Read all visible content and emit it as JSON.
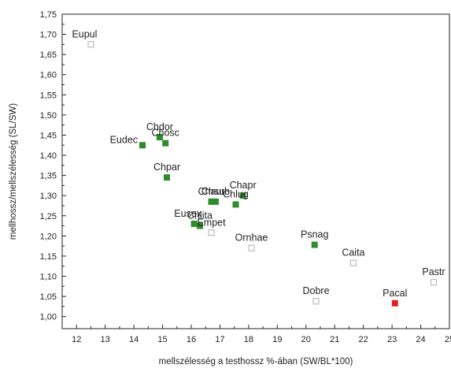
{
  "chart_data": {
    "type": "scatter",
    "xlabel": "mellszélesség a testhossz %-ában (SW/BL*100)",
    "ylabel": "mellhossz/mellszélesség (SL/SW)",
    "xlim": [
      11.5,
      25
    ],
    "ylim": [
      0.97,
      1.75
    ],
    "x_ticks": [
      12,
      13,
      14,
      15,
      16,
      17,
      18,
      19,
      20,
      21,
      22,
      23,
      24,
      25
    ],
    "x_tick_labels": [
      "12",
      "13",
      "14",
      "15",
      "16",
      "17",
      "18",
      "19",
      "20",
      "21",
      "22",
      "23",
      "24",
      "25"
    ],
    "y_ticks": [
      1.0,
      1.05,
      1.1,
      1.15,
      1.2,
      1.25,
      1.3,
      1.35,
      1.4,
      1.45,
      1.5,
      1.55,
      1.6,
      1.65,
      1.7,
      1.75
    ],
    "y_tick_labels": [
      "1,00",
      "1,05",
      "1,10",
      "1,15",
      "1,20",
      "1,25",
      "1,30",
      "1,35",
      "1,40",
      "1,45",
      "1,50",
      "1,55",
      "1,60",
      "1,65",
      "1,70",
      "1,75"
    ],
    "grid": false,
    "marker_styles": {
      "green": {
        "fill": "#2e8b2e",
        "stroke": "#2e8b2e"
      },
      "red": {
        "fill": "#e02020",
        "stroke": "#e02020"
      },
      "open": {
        "fill": "#ffffff",
        "stroke": "#b0b0b0"
      }
    },
    "points": [
      {
        "label": "Eupul",
        "x": 12.5,
        "y": 1.675,
        "style": "open",
        "label_pos": "above-left"
      },
      {
        "label": "Chdor",
        "x": 14.9,
        "y": 1.445,
        "style": "green",
        "label_pos": "above"
      },
      {
        "label": "Chosc",
        "x": 15.1,
        "y": 1.43,
        "style": "green",
        "label_pos": "above"
      },
      {
        "label": "Eudec",
        "x": 14.3,
        "y": 1.425,
        "style": "green",
        "label_pos": "left"
      },
      {
        "label": "Chpar",
        "x": 15.15,
        "y": 1.345,
        "style": "green",
        "label_pos": "above"
      },
      {
        "label": "Chapr",
        "x": 17.8,
        "y": 1.3,
        "style": "green",
        "label_pos": "above"
      },
      {
        "label": "Chaur",
        "x": 16.7,
        "y": 1.285,
        "style": "green",
        "label_pos": "above"
      },
      {
        "label": "Chsub",
        "x": 16.85,
        "y": 1.285,
        "style": "green",
        "label_pos": "above"
      },
      {
        "label": "Chlug",
        "x": 17.55,
        "y": 1.278,
        "style": "green",
        "label_pos": "above"
      },
      {
        "label": "Eusex",
        "x": 16.1,
        "y": 1.23,
        "style": "green",
        "label_pos": "above-left"
      },
      {
        "label": "Chlita",
        "x": 16.3,
        "y": 1.225,
        "style": "green",
        "label_pos": "above"
      },
      {
        "label": "Empet",
        "x": 16.7,
        "y": 1.208,
        "style": "open",
        "label_pos": "above"
      },
      {
        "label": "Ornhae",
        "x": 18.1,
        "y": 1.17,
        "style": "open",
        "label_pos": "above"
      },
      {
        "label": "Psnag",
        "x": 20.3,
        "y": 1.178,
        "style": "green",
        "label_pos": "above"
      },
      {
        "label": "Caita",
        "x": 21.65,
        "y": 1.133,
        "style": "open",
        "label_pos": "above"
      },
      {
        "label": "Pastr",
        "x": 24.45,
        "y": 1.085,
        "style": "open",
        "label_pos": "above"
      },
      {
        "label": "Dobre",
        "x": 20.35,
        "y": 1.038,
        "style": "open",
        "label_pos": "above"
      },
      {
        "label": "Pacal",
        "x": 23.1,
        "y": 1.033,
        "style": "red",
        "label_pos": "above"
      }
    ]
  }
}
